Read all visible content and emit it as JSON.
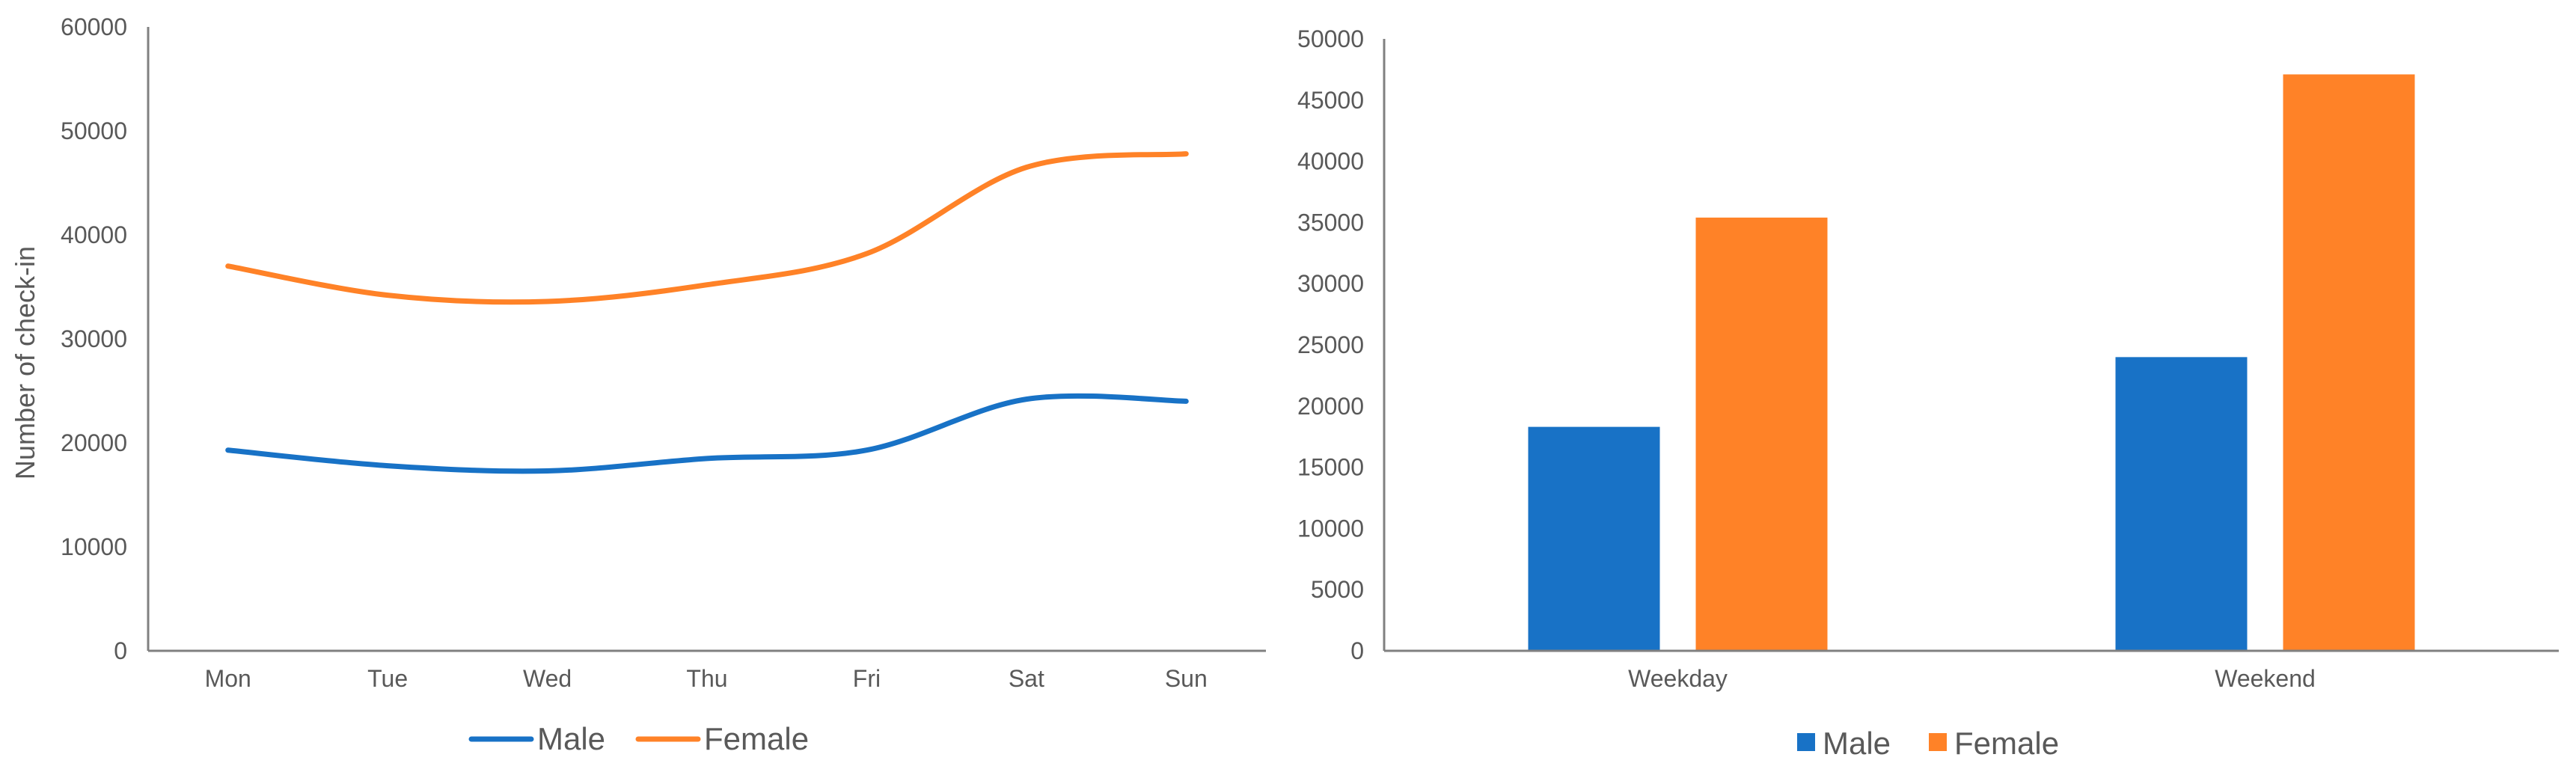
{
  "chart_data": [
    {
      "type": "line",
      "x": [
        "Mon",
        "Tue",
        "Wed",
        "Thu",
        "Fri",
        "Sat",
        "Sun"
      ],
      "series": [
        {
          "name": "Male",
          "values": [
            19300,
            17800,
            17300,
            18500,
            19300,
            24200,
            24000
          ],
          "color": "#1872c6"
        },
        {
          "name": "Female",
          "values": [
            37000,
            34200,
            33600,
            35200,
            38200,
            46500,
            47800
          ],
          "color": "#ff8227"
        }
      ],
      "ylabel": "Number of check-in",
      "ylim": [
        0,
        60000
      ],
      "yticks": [
        "0",
        "10000",
        "20000",
        "30000",
        "40000",
        "50000",
        "60000"
      ],
      "smooth": true,
      "grid": false,
      "legend": "bottom-center"
    },
    {
      "type": "bar",
      "categories": [
        "Weekday",
        "Weekend"
      ],
      "series": [
        {
          "name": "Male",
          "values": [
            18300,
            24000
          ],
          "color": "#1872c6"
        },
        {
          "name": "Female",
          "values": [
            35400,
            47100
          ],
          "color": "#ff8227"
        }
      ],
      "ylim": [
        0,
        50000
      ],
      "yticks": [
        "0",
        "5000",
        "10000",
        "15000",
        "20000",
        "25000",
        "30000",
        "35000",
        "40000",
        "45000",
        "50000"
      ],
      "grid": false,
      "legend": "bottom-center"
    }
  ]
}
